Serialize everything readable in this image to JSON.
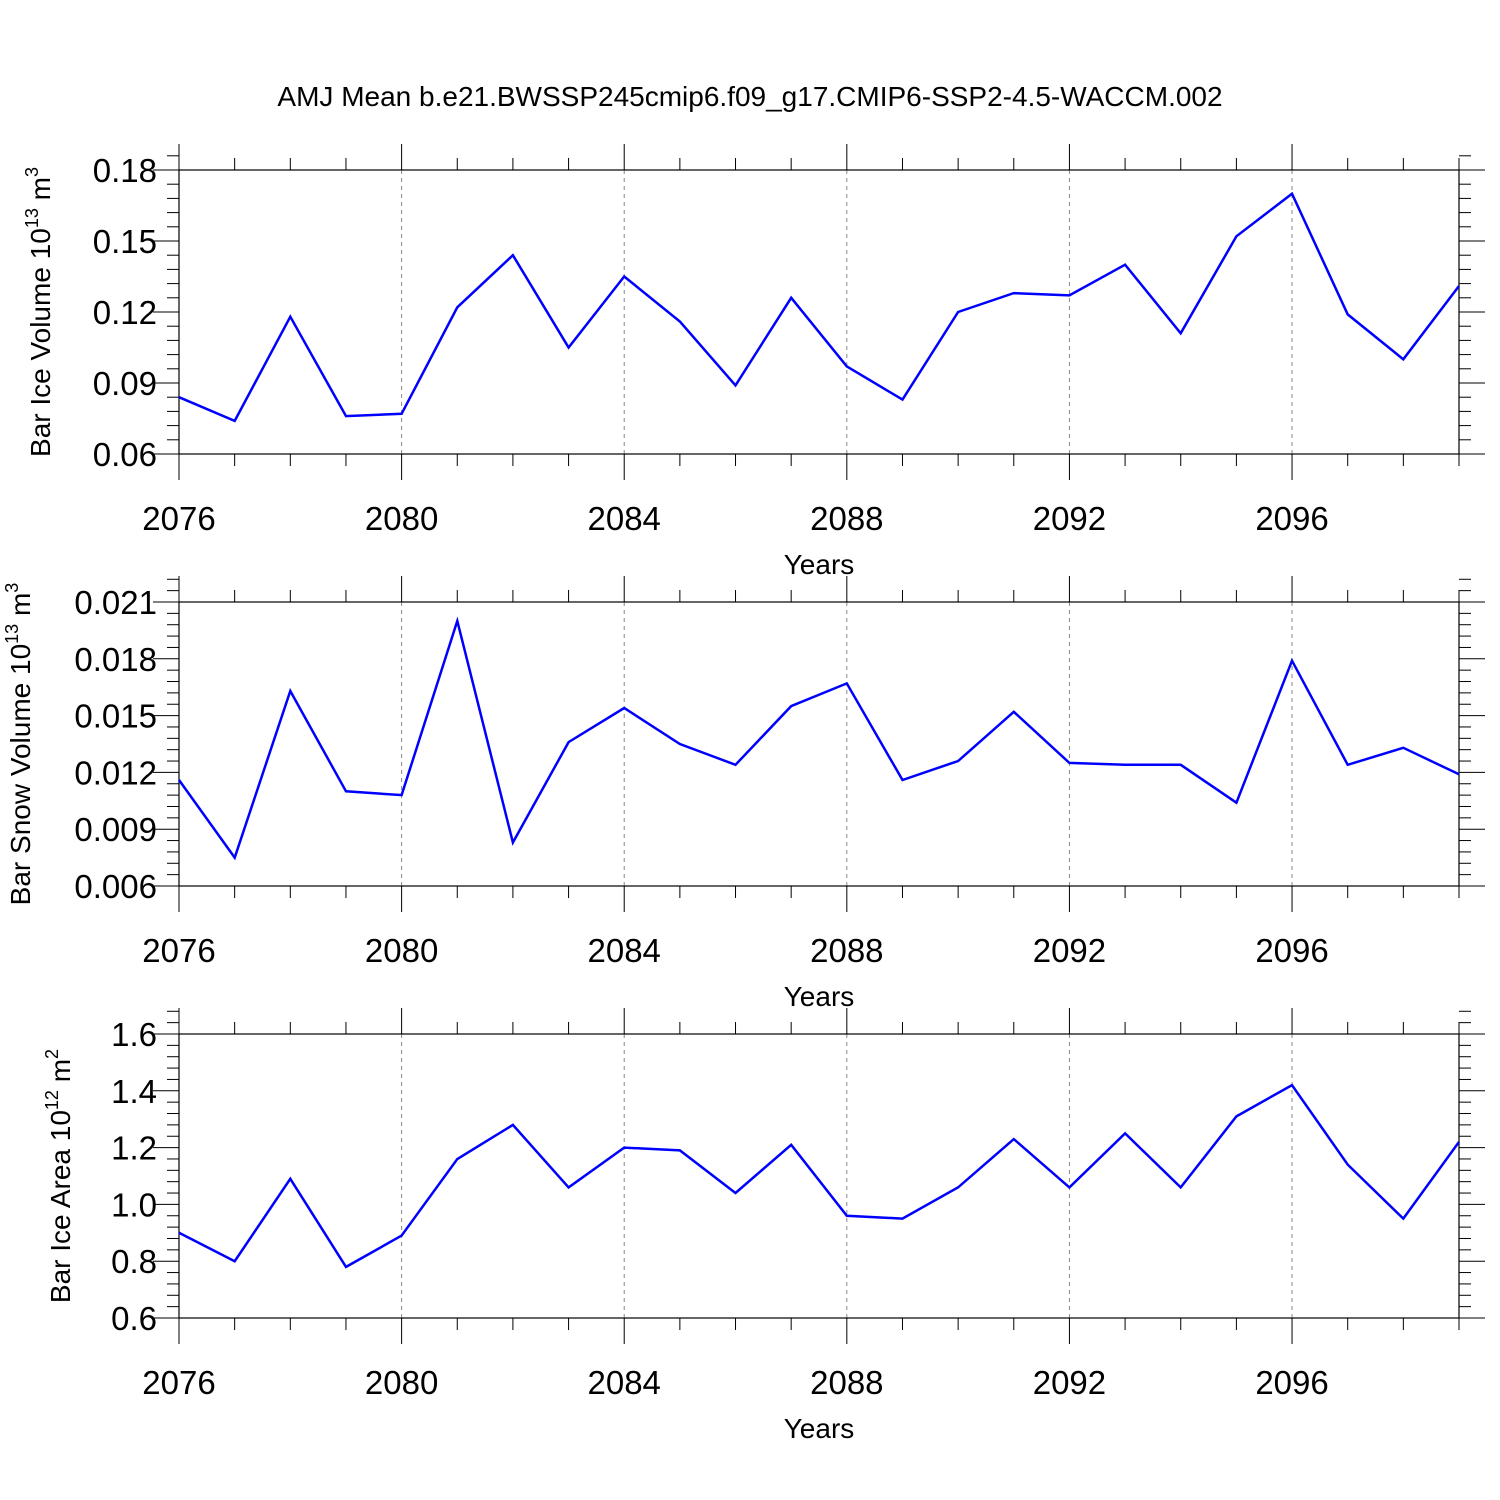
{
  "title": "AMJ Mean b.e21.BWSSP245cmip6.f09_g17.CMIP6-SSP2-4.5-WACCM.002",
  "colors": {
    "line": "#0000ff",
    "axis": "#000000",
    "grid": "#888888"
  },
  "chart_data": [
    {
      "type": "line",
      "title": "AMJ Mean b.e21.BWSSP245cmip6.f09_g17.CMIP6-SSP2-4.5-WACCM.002",
      "xlabel": "Years",
      "ylabel": {
        "text": "Bar Ice Volume 10",
        "exp1": "13",
        "unit": " m",
        "exp2": "3"
      },
      "x": [
        2076,
        2077,
        2078,
        2079,
        2080,
        2081,
        2082,
        2083,
        2084,
        2085,
        2086,
        2087,
        2088,
        2089,
        2090,
        2091,
        2092,
        2093,
        2094,
        2095,
        2096,
        2097,
        2098,
        2099
      ],
      "y": [
        0.084,
        0.074,
        0.118,
        0.076,
        0.077,
        0.122,
        0.144,
        0.105,
        0.135,
        0.116,
        0.089,
        0.126,
        0.097,
        0.083,
        0.12,
        0.128,
        0.127,
        0.14,
        0.111,
        0.152,
        0.17,
        0.119,
        0.1,
        0.131
      ],
      "xlim": [
        2076,
        2099
      ],
      "ylim": [
        0.06,
        0.18
      ],
      "xticks": [
        "2076",
        "2080",
        "2084",
        "2088",
        "2092",
        "2096"
      ],
      "xtick_values": [
        2076,
        2080,
        2084,
        2088,
        2092,
        2096
      ],
      "yticks": [
        "0.06",
        "0.09",
        "0.12",
        "0.15",
        "0.18"
      ],
      "ytick_values": [
        0.06,
        0.09,
        0.12,
        0.15,
        0.18
      ],
      "grid": "vertical dashed at major x ticks"
    },
    {
      "type": "line",
      "xlabel": "Years",
      "ylabel": {
        "text": "Bar Snow Volume 10",
        "exp1": "13",
        "unit": " m",
        "exp2": "3"
      },
      "x": [
        2076,
        2077,
        2078,
        2079,
        2080,
        2081,
        2082,
        2083,
        2084,
        2085,
        2086,
        2087,
        2088,
        2089,
        2090,
        2091,
        2092,
        2093,
        2094,
        2095,
        2096,
        2097,
        2098,
        2099
      ],
      "y": [
        0.0116,
        0.0075,
        0.0163,
        0.011,
        0.0108,
        0.02,
        0.0083,
        0.0136,
        0.0154,
        0.0135,
        0.0124,
        0.0155,
        0.0167,
        0.0116,
        0.0126,
        0.0152,
        0.0125,
        0.0124,
        0.0124,
        0.0104,
        0.0179,
        0.0124,
        0.0133,
        0.0119
      ],
      "xlim": [
        2076,
        2099
      ],
      "ylim": [
        0.006,
        0.021
      ],
      "xticks": [
        "2076",
        "2080",
        "2084",
        "2088",
        "2092",
        "2096"
      ],
      "xtick_values": [
        2076,
        2080,
        2084,
        2088,
        2092,
        2096
      ],
      "yticks": [
        "0.006",
        "0.009",
        "0.012",
        "0.015",
        "0.018",
        "0.021"
      ],
      "ytick_values": [
        0.006,
        0.009,
        0.012,
        0.015,
        0.018,
        0.021
      ],
      "grid": "vertical dashed at major x ticks"
    },
    {
      "type": "line",
      "xlabel": "Years",
      "ylabel": {
        "text": "Bar Ice Area 10",
        "exp1": "12",
        "unit": " m",
        "exp2": "2"
      },
      "x": [
        2076,
        2077,
        2078,
        2079,
        2080,
        2081,
        2082,
        2083,
        2084,
        2085,
        2086,
        2087,
        2088,
        2089,
        2090,
        2091,
        2092,
        2093,
        2094,
        2095,
        2096,
        2097,
        2098,
        2099
      ],
      "y": [
        0.9,
        0.8,
        1.09,
        0.78,
        0.89,
        1.16,
        1.28,
        1.06,
        1.2,
        1.19,
        1.04,
        1.21,
        0.96,
        0.95,
        1.06,
        1.23,
        1.06,
        1.25,
        1.06,
        1.31,
        1.42,
        1.14,
        0.95,
        1.22
      ],
      "xlim": [
        2076,
        2099
      ],
      "ylim": [
        0.6,
        1.6
      ],
      "xticks": [
        "2076",
        "2080",
        "2084",
        "2088",
        "2092",
        "2096"
      ],
      "xtick_values": [
        2076,
        2080,
        2084,
        2088,
        2092,
        2096
      ],
      "yticks": [
        "0.6",
        "0.8",
        "1.0",
        "1.2",
        "1.4",
        "1.6"
      ],
      "ytick_values": [
        0.6,
        0.8,
        1.0,
        1.2,
        1.4,
        1.6
      ],
      "grid": "vertical dashed at major x ticks"
    }
  ]
}
